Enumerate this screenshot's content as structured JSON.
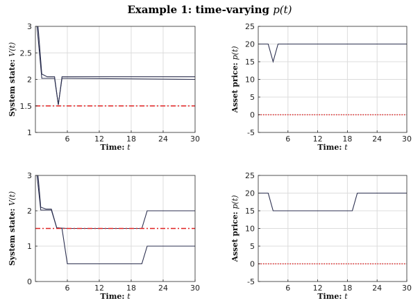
{
  "figure": {
    "title_prefix": "Example 1: time-varying ",
    "title_math": "p(t)"
  },
  "chart_data": [
    {
      "type": "line",
      "xlabel_prefix": "Time: ",
      "xlabel_var": "t",
      "ylabel_prefix": "System state: ",
      "ylabel_var": "V(t)",
      "xlim": [
        0,
        30
      ],
      "ylim": [
        1,
        3
      ],
      "xticks": [
        6,
        12,
        18,
        24,
        30
      ],
      "yticks": [
        1,
        1.5,
        2,
        2.5,
        3
      ],
      "grid": true,
      "series": [
        {
          "color": "#2b2f4f",
          "style": "solid",
          "x": [
            0.5,
            1.2,
            2.2,
            3.6,
            4.3,
            5.0,
            6,
            30
          ],
          "y": [
            3.0,
            2.1,
            2.05,
            2.05,
            1.52,
            2.05,
            2.05,
            2.05
          ]
        },
        {
          "color": "#2b2f4f",
          "style": "solid",
          "x": [
            0.3,
            1.2,
            2.2,
            3.6,
            4.3,
            5.0,
            6,
            30
          ],
          "y": [
            3.0,
            2.02,
            2.02,
            2.02,
            1.52,
            2.02,
            2.02,
            2.0
          ]
        },
        {
          "color": "#e02020",
          "style": "dashdot",
          "x": [
            0,
            30
          ],
          "y": [
            1.5,
            1.5
          ]
        }
      ]
    },
    {
      "type": "line",
      "xlabel_prefix": "Time: ",
      "xlabel_var": "t",
      "ylabel_prefix": "Asset price: ",
      "ylabel_var": "p(t)",
      "xlim": [
        0,
        30
      ],
      "ylim": [
        -5,
        25
      ],
      "xticks": [
        6,
        12,
        18,
        24,
        30
      ],
      "yticks": [
        -5,
        0,
        5,
        10,
        15,
        20,
        25
      ],
      "grid": true,
      "series": [
        {
          "color": "#2b2f4f",
          "style": "solid",
          "x": [
            0,
            2,
            3,
            4,
            30
          ],
          "y": [
            20,
            20,
            15,
            20,
            20
          ]
        },
        {
          "color": "#e02020",
          "style": "dotted",
          "x": [
            0,
            30
          ],
          "y": [
            0,
            0
          ]
        }
      ]
    },
    {
      "type": "line",
      "xlabel_prefix": "Time: ",
      "xlabel_var": "t",
      "ylabel_prefix": "System state: ",
      "ylabel_var": "V(t)",
      "xlim": [
        0,
        30
      ],
      "ylim": [
        0,
        3
      ],
      "xticks": [
        6,
        12,
        18,
        24,
        30
      ],
      "yticks": [
        0,
        1,
        2,
        3
      ],
      "grid": true,
      "series": [
        {
          "color": "#2b2f4f",
          "style": "solid",
          "x": [
            0.5,
            1.0,
            2.0,
            3.0,
            4.0,
            6,
            20,
            21,
            30
          ],
          "y": [
            3.0,
            2.1,
            2.05,
            2.05,
            1.52,
            1.5,
            1.5,
            2.0,
            2.0
          ]
        },
        {
          "color": "#2b2f4f",
          "style": "solid",
          "x": [
            0.3,
            1.0,
            2.0,
            3.0,
            4.0,
            5.0,
            6,
            20,
            21,
            30
          ],
          "y": [
            3.0,
            2.02,
            2.02,
            2.02,
            1.52,
            1.5,
            0.5,
            0.5,
            1.0,
            1.0
          ]
        },
        {
          "color": "#e02020",
          "style": "dashdot",
          "x": [
            0,
            30
          ],
          "y": [
            1.5,
            1.5
          ]
        }
      ]
    },
    {
      "type": "line",
      "xlabel_prefix": "Time: ",
      "xlabel_var": "t",
      "ylabel_prefix": "Asset price: ",
      "ylabel_var": "p(t)",
      "xlim": [
        0,
        30
      ],
      "ylim": [
        -5,
        25
      ],
      "xticks": [
        6,
        12,
        18,
        24,
        30
      ],
      "yticks": [
        -5,
        0,
        5,
        10,
        15,
        20,
        25
      ],
      "grid": true,
      "series": [
        {
          "color": "#2b2f4f",
          "style": "solid",
          "x": [
            0,
            2,
            3,
            19,
            20,
            30
          ],
          "y": [
            20,
            20,
            15,
            15,
            20,
            20
          ]
        },
        {
          "color": "#e02020",
          "style": "dotted",
          "x": [
            0,
            30
          ],
          "y": [
            0,
            0
          ]
        }
      ]
    }
  ]
}
